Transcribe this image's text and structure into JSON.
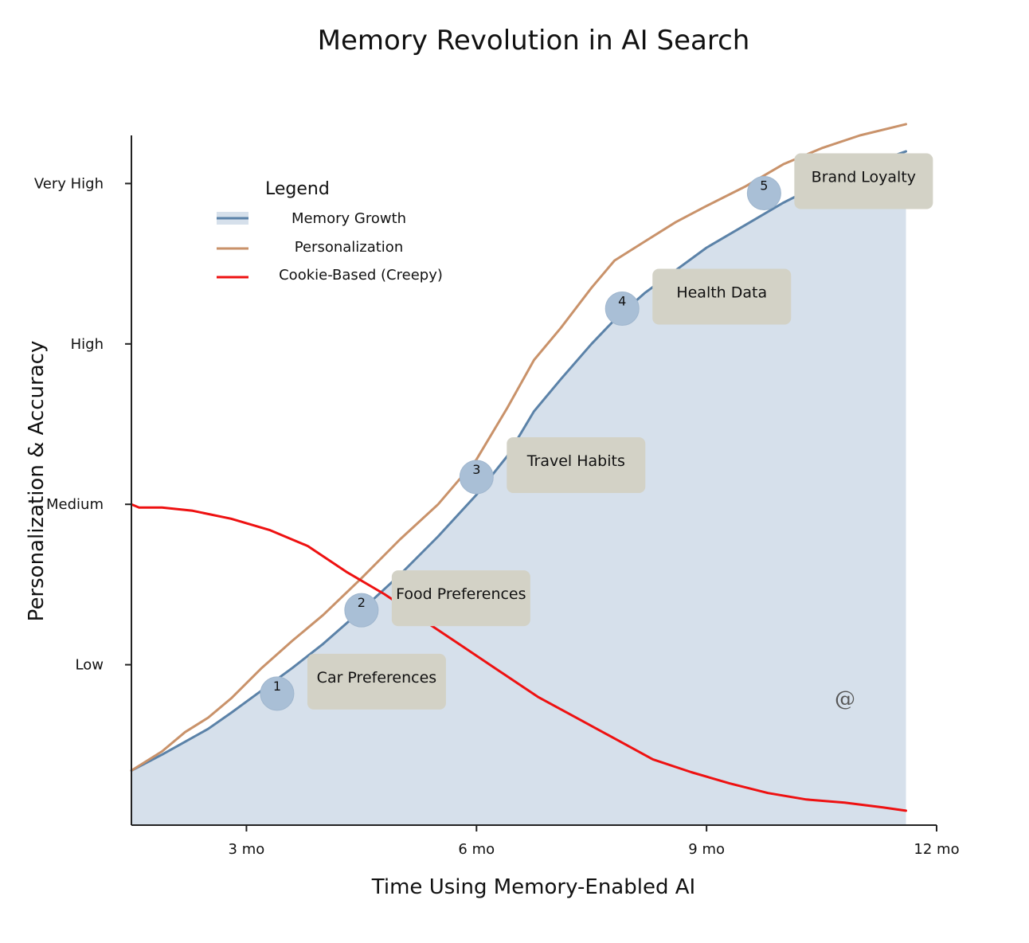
{
  "chart_data": {
    "type": "area",
    "title": "Memory Revolution in AI Search",
    "xlabel": "Time Using Memory-Enabled AI",
    "ylabel": "Personalization & Accuracy",
    "x_ticks": [
      {
        "value": 3,
        "label": "3 mo"
      },
      {
        "value": 6,
        "label": "6 mo"
      },
      {
        "value": 9,
        "label": "9 mo"
      },
      {
        "value": 12,
        "label": "12 mo"
      }
    ],
    "y_ticks": [
      {
        "value": 1,
        "label": "Low"
      },
      {
        "value": 2,
        "label": "Medium"
      },
      {
        "value": 3,
        "label": "High"
      },
      {
        "value": 4,
        "label": "Very High"
      }
    ],
    "xlim": [
      1.5,
      12
    ],
    "ylim": [
      0.0,
      4.3
    ],
    "grid": false,
    "legend": {
      "title": "Legend",
      "position": "top-left",
      "entries": [
        "Memory Growth",
        "Personalization",
        "Cookie-Based (Creepy)"
      ]
    },
    "series": [
      {
        "name": "Memory Growth",
        "kind": "area",
        "color": "#5b82a8",
        "fill": "#d6e0eb",
        "x": [
          1.5,
          1.9,
          2.2,
          2.5,
          2.8,
          3.2,
          3.6,
          4.0,
          4.5,
          5.0,
          5.5,
          6.0,
          6.4,
          6.75,
          7.1,
          7.5,
          7.8,
          8.2,
          8.6,
          9.0,
          9.5,
          10.0,
          10.5,
          11.0,
          11.6
        ],
        "values": [
          0.34,
          0.44,
          0.52,
          0.6,
          0.7,
          0.84,
          0.98,
          1.13,
          1.34,
          1.56,
          1.8,
          2.06,
          2.3,
          2.58,
          2.78,
          3.0,
          3.15,
          3.32,
          3.46,
          3.6,
          3.74,
          3.88,
          4.0,
          4.1,
          4.2
        ]
      },
      {
        "name": "Personalization",
        "kind": "line",
        "color": "#c9926a",
        "x": [
          1.5,
          1.9,
          2.2,
          2.5,
          2.8,
          3.2,
          3.6,
          4.0,
          4.5,
          5.0,
          5.5,
          6.0,
          6.4,
          6.75,
          7.1,
          7.5,
          7.8,
          8.2,
          8.6,
          9.0,
          9.5,
          10.0,
          10.5,
          11.0,
          11.6
        ],
        "values": [
          0.34,
          0.46,
          0.58,
          0.67,
          0.79,
          0.98,
          1.15,
          1.31,
          1.54,
          1.78,
          2.0,
          2.28,
          2.6,
          2.9,
          3.1,
          3.35,
          3.52,
          3.64,
          3.76,
          3.86,
          3.98,
          4.12,
          4.22,
          4.3,
          4.37
        ]
      },
      {
        "name": "Cookie-Based (Creepy)",
        "kind": "line",
        "color": "#ee1111",
        "x": [
          1.5,
          1.6,
          1.9,
          2.3,
          2.8,
          3.3,
          3.8,
          4.3,
          4.8,
          5.3,
          5.8,
          6.3,
          6.8,
          7.3,
          7.8,
          8.3,
          8.8,
          9.3,
          9.8,
          10.3,
          10.8,
          11.3,
          11.6
        ],
        "values": [
          2.0,
          1.98,
          1.98,
          1.96,
          1.91,
          1.84,
          1.74,
          1.58,
          1.44,
          1.28,
          1.12,
          0.96,
          0.8,
          0.67,
          0.54,
          0.41,
          0.33,
          0.26,
          0.2,
          0.16,
          0.14,
          0.11,
          0.09
        ]
      }
    ],
    "annotations": [
      {
        "number": "1",
        "label": "Car Preferences",
        "x": 3.4,
        "y": 0.82
      },
      {
        "number": "2",
        "label": "Food Preferences",
        "x": 4.5,
        "y": 1.34
      },
      {
        "number": "3",
        "label": "Travel Habits",
        "x": 6.0,
        "y": 2.17
      },
      {
        "number": "4",
        "label": "Health Data",
        "x": 7.9,
        "y": 3.22
      },
      {
        "number": "5",
        "label": "Brand Loyalty",
        "x": 9.75,
        "y": 3.94
      }
    ]
  },
  "watermark": "@"
}
